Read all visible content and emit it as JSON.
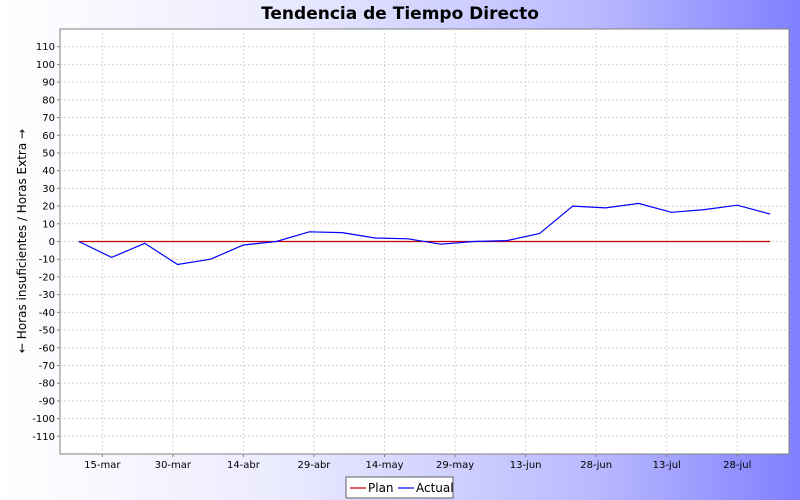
{
  "chart_data": {
    "type": "line",
    "title": "Tendencia de Tiempo Directo",
    "xlabel": "",
    "ylabel": "← Horas insuficientes / Horas Extra →",
    "ylim": [
      -120,
      120
    ],
    "yticks": [
      -110,
      -100,
      -90,
      -80,
      -70,
      -60,
      -50,
      -40,
      -30,
      -20,
      -10,
      0,
      10,
      20,
      30,
      40,
      50,
      60,
      70,
      80,
      90,
      100,
      110
    ],
    "x": [
      "2013-03-10",
      "2013-03-17",
      "2013-03-24",
      "2013-03-31",
      "2013-04-07",
      "2013-04-14",
      "2013-04-21",
      "2013-04-28",
      "2013-05-05",
      "2013-05-12",
      "2013-05-19",
      "2013-05-26",
      "2013-06-02",
      "2013-06-09",
      "2013-06-16",
      "2013-06-23",
      "2013-06-30",
      "2013-07-07",
      "2013-07-14",
      "2013-07-21",
      "2013-07-28",
      "2013-08-04"
    ],
    "xticks": [
      {
        "date": "2013-03-15",
        "label": "15-mar"
      },
      {
        "date": "2013-03-30",
        "label": "30-mar"
      },
      {
        "date": "2013-04-14",
        "label": "14-abr"
      },
      {
        "date": "2013-04-29",
        "label": "29-abr"
      },
      {
        "date": "2013-05-14",
        "label": "14-may"
      },
      {
        "date": "2013-05-29",
        "label": "29-may"
      },
      {
        "date": "2013-06-13",
        "label": "13-jun"
      },
      {
        "date": "2013-06-28",
        "label": "28-jun"
      },
      {
        "date": "2013-07-13",
        "label": "13-jul"
      },
      {
        "date": "2013-07-28",
        "label": "28-jul"
      }
    ],
    "xlim": [
      "2013-03-06",
      "2013-08-08"
    ],
    "series": [
      {
        "name": "Plan",
        "color": "#c00000",
        "values": [
          0,
          0,
          0,
          0,
          0,
          0,
          0,
          0,
          0,
          0,
          0,
          0,
          0,
          0,
          0,
          0,
          0,
          0,
          0,
          0,
          0,
          0
        ]
      },
      {
        "name": "Actual",
        "color": "#0000ff",
        "values": [
          0,
          -9,
          -1,
          -13,
          -10,
          -2,
          0,
          5.5,
          5,
          2,
          1.5,
          -1.5,
          0,
          0.5,
          4.5,
          20,
          19,
          21.5,
          16.5,
          18,
          20.5,
          15.5
        ]
      }
    ],
    "grid": true,
    "legend": "bottom-center"
  }
}
